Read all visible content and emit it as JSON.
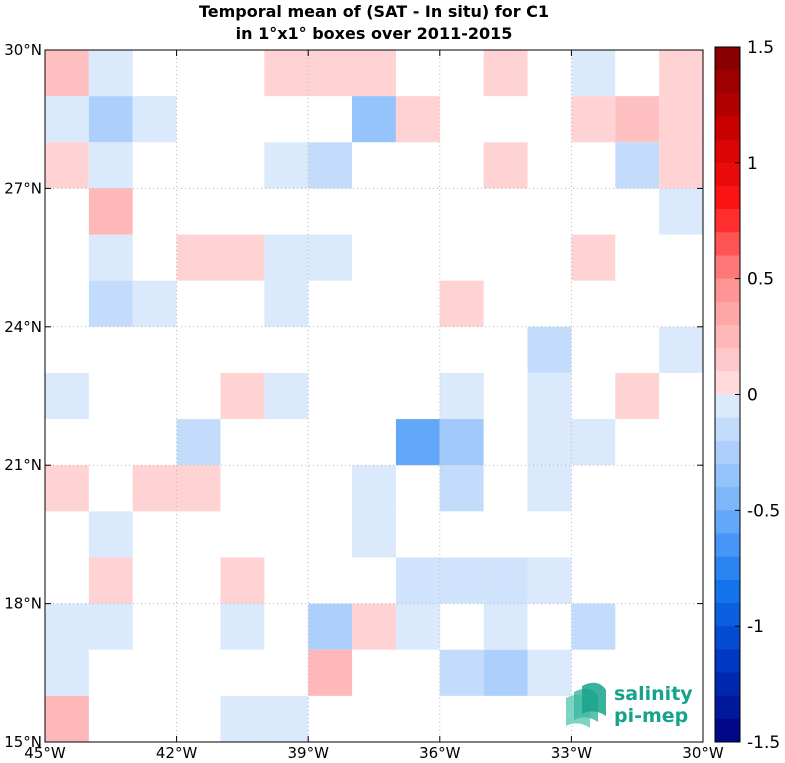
{
  "chart_data": {
    "type": "heatmap",
    "title_lines": [
      "Temporal mean of (SAT - In situ) for C1",
      "in 1°x1° boxes over 2011-2015"
    ],
    "xlim": [
      -45,
      -30
    ],
    "ylim": [
      15,
      30
    ],
    "x_ticks": [
      {
        "value": -45,
        "label": "45°W"
      },
      {
        "value": -42,
        "label": "42°W"
      },
      {
        "value": -39,
        "label": "39°W"
      },
      {
        "value": -36,
        "label": "36°W"
      },
      {
        "value": -33,
        "label": "33°W"
      },
      {
        "value": -30,
        "label": "30°W"
      }
    ],
    "y_ticks": [
      {
        "value": 15,
        "label": "15°N"
      },
      {
        "value": 18,
        "label": "18°N"
      },
      {
        "value": 21,
        "label": "21°N"
      },
      {
        "value": 24,
        "label": "24°N"
      },
      {
        "value": 27,
        "label": "27°N"
      },
      {
        "value": 30,
        "label": "30°N"
      }
    ],
    "grid": true,
    "cell_size_deg": 1,
    "cells_note": "each cell: lon = west edge, lat = south edge, value = mean difference",
    "cells": [
      {
        "lon": -45,
        "lat": 29,
        "value": 0.2
      },
      {
        "lon": -44,
        "lat": 29,
        "value": -0.05
      },
      {
        "lon": -40,
        "lat": 29,
        "value": 0.1
      },
      {
        "lon": -39,
        "lat": 29,
        "value": 0.1
      },
      {
        "lon": -38,
        "lat": 29,
        "value": 0.1
      },
      {
        "lon": -35,
        "lat": 29,
        "value": 0.1
      },
      {
        "lon": -33,
        "lat": 29,
        "value": -0.05
      },
      {
        "lon": -31,
        "lat": 29,
        "value": 0.1
      },
      {
        "lon": -45,
        "lat": 28,
        "value": -0.05
      },
      {
        "lon": -44,
        "lat": 28,
        "value": -0.25
      },
      {
        "lon": -43,
        "lat": 28,
        "value": -0.05
      },
      {
        "lon": -38,
        "lat": 28,
        "value": -0.35
      },
      {
        "lon": -37,
        "lat": 28,
        "value": 0.1
      },
      {
        "lon": -33,
        "lat": 28,
        "value": 0.1
      },
      {
        "lon": -32,
        "lat": 28,
        "value": 0.2
      },
      {
        "lon": -31,
        "lat": 28,
        "value": 0.1
      },
      {
        "lon": -45,
        "lat": 27,
        "value": 0.1
      },
      {
        "lon": -44,
        "lat": 27,
        "value": -0.05
      },
      {
        "lon": -40,
        "lat": 27,
        "value": -0.05
      },
      {
        "lon": -39,
        "lat": 27,
        "value": -0.15
      },
      {
        "lon": -35,
        "lat": 27,
        "value": 0.1
      },
      {
        "lon": -32,
        "lat": 27,
        "value": -0.15
      },
      {
        "lon": -31,
        "lat": 27,
        "value": 0.1
      },
      {
        "lon": -44,
        "lat": 26,
        "value": 0.25
      },
      {
        "lon": -31,
        "lat": 26,
        "value": -0.05
      },
      {
        "lon": -44,
        "lat": 25,
        "value": -0.05
      },
      {
        "lon": -42,
        "lat": 25,
        "value": 0.1
      },
      {
        "lon": -41,
        "lat": 25,
        "value": 0.1
      },
      {
        "lon": -40,
        "lat": 25,
        "value": -0.05
      },
      {
        "lon": -39,
        "lat": 25,
        "value": -0.05
      },
      {
        "lon": -33,
        "lat": 25,
        "value": 0.1
      },
      {
        "lon": -44,
        "lat": 24,
        "value": -0.15
      },
      {
        "lon": -43,
        "lat": 24,
        "value": -0.05
      },
      {
        "lon": -40,
        "lat": 24,
        "value": -0.05
      },
      {
        "lon": -36,
        "lat": 24,
        "value": 0.1
      },
      {
        "lon": -34,
        "lat": 23,
        "value": -0.15
      },
      {
        "lon": -31,
        "lat": 23,
        "value": -0.05
      },
      {
        "lon": -45,
        "lat": 22,
        "value": -0.05
      },
      {
        "lon": -41,
        "lat": 22,
        "value": 0.1
      },
      {
        "lon": -40,
        "lat": 22,
        "value": -0.05
      },
      {
        "lon": -36,
        "lat": 22,
        "value": -0.05
      },
      {
        "lon": -34,
        "lat": 22,
        "value": -0.05
      },
      {
        "lon": -32,
        "lat": 22,
        "value": 0.1
      },
      {
        "lon": -42,
        "lat": 21,
        "value": -0.15
      },
      {
        "lon": -37,
        "lat": 21,
        "value": -0.55
      },
      {
        "lon": -36,
        "lat": 21,
        "value": -0.3
      },
      {
        "lon": -34,
        "lat": 21,
        "value": -0.05
      },
      {
        "lon": -33,
        "lat": 21,
        "value": -0.05
      },
      {
        "lon": -45,
        "lat": 20,
        "value": 0.1
      },
      {
        "lon": -43,
        "lat": 20,
        "value": 0.1
      },
      {
        "lon": -42,
        "lat": 20,
        "value": 0.1
      },
      {
        "lon": -38,
        "lat": 20,
        "value": -0.05
      },
      {
        "lon": -36,
        "lat": 20,
        "value": -0.15
      },
      {
        "lon": -34,
        "lat": 20,
        "value": -0.05
      },
      {
        "lon": -44,
        "lat": 19,
        "value": -0.05
      },
      {
        "lon": -38,
        "lat": 19,
        "value": -0.05
      },
      {
        "lon": -44,
        "lat": 18,
        "value": 0.1
      },
      {
        "lon": -41,
        "lat": 18,
        "value": 0.1
      },
      {
        "lon": -37,
        "lat": 18,
        "value": -0.1
      },
      {
        "lon": -36,
        "lat": 18,
        "value": -0.1
      },
      {
        "lon": -35,
        "lat": 18,
        "value": -0.1
      },
      {
        "lon": -34,
        "lat": 18,
        "value": -0.05
      },
      {
        "lon": -45,
        "lat": 17,
        "value": -0.05
      },
      {
        "lon": -44,
        "lat": 17,
        "value": -0.05
      },
      {
        "lon": -41,
        "lat": 17,
        "value": -0.05
      },
      {
        "lon": -39,
        "lat": 17,
        "value": -0.25
      },
      {
        "lon": -38,
        "lat": 17,
        "value": 0.1
      },
      {
        "lon": -37,
        "lat": 17,
        "value": -0.05
      },
      {
        "lon": -35,
        "lat": 17,
        "value": -0.05
      },
      {
        "lon": -33,
        "lat": 17,
        "value": -0.15
      },
      {
        "lon": -45,
        "lat": 16,
        "value": -0.05
      },
      {
        "lon": -39,
        "lat": 16,
        "value": 0.25
      },
      {
        "lon": -36,
        "lat": 16,
        "value": -0.15
      },
      {
        "lon": -35,
        "lat": 16,
        "value": -0.25
      },
      {
        "lon": -34,
        "lat": 16,
        "value": -0.05
      },
      {
        "lon": -45,
        "lat": 15,
        "value": 0.25
      },
      {
        "lon": -41,
        "lat": 15,
        "value": -0.05
      },
      {
        "lon": -40,
        "lat": 15,
        "value": -0.05
      }
    ],
    "colorbar": {
      "range": [
        -1.5,
        1.5
      ],
      "levels": 30,
      "ticks": [
        {
          "value": 1.5,
          "label": "1.5"
        },
        {
          "value": 1,
          "label": "1"
        },
        {
          "value": 0.5,
          "label": "0.5"
        },
        {
          "value": 0,
          "label": "0"
        },
        {
          "value": -0.5,
          "label": "-0.5"
        },
        {
          "value": -1,
          "label": "-1"
        },
        {
          "value": -1.5,
          "label": "-1.5"
        }
      ]
    }
  },
  "logo": {
    "line1": "salinity",
    "line2": "pi-mep",
    "color": "#17a38b"
  }
}
